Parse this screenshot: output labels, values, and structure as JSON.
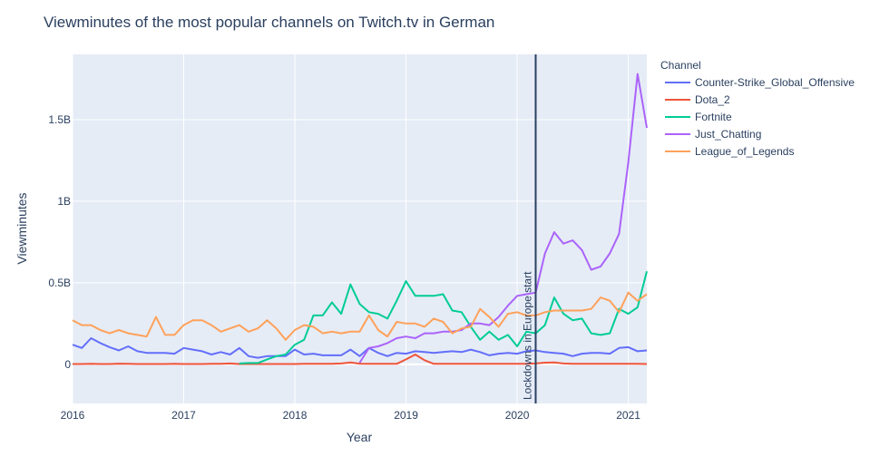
{
  "chart_data": {
    "type": "line",
    "title": "Viewminutes of the most popular channels on Twitch.tv in German",
    "xlabel": "Year",
    "ylabel": "Viewminutes",
    "legend_title": "Channel",
    "legend_position": "right",
    "grid": true,
    "x_ticks": [
      "2016",
      "2017",
      "2018",
      "2019",
      "2020",
      "2021"
    ],
    "y_ticks": [
      {
        "value": 0,
        "label": "0"
      },
      {
        "value": 500000000,
        "label": "0.5B"
      },
      {
        "value": 1000000000,
        "label": "1B"
      },
      {
        "value": 1500000000,
        "label": "1.5B"
      }
    ],
    "xlim": [
      "2016-01",
      "2021-03"
    ],
    "ylim": [
      -240000000,
      1900000000
    ],
    "annotation": {
      "x": "2020-03",
      "text": "Lockdowns in Europe start",
      "color": "#2a3f5f"
    },
    "x": [
      "2016-01",
      "2016-02",
      "2016-03",
      "2016-04",
      "2016-05",
      "2016-06",
      "2016-07",
      "2016-08",
      "2016-09",
      "2016-10",
      "2016-11",
      "2016-12",
      "2017-01",
      "2017-02",
      "2017-03",
      "2017-04",
      "2017-05",
      "2017-06",
      "2017-07",
      "2017-08",
      "2017-09",
      "2017-10",
      "2017-11",
      "2017-12",
      "2018-01",
      "2018-02",
      "2018-03",
      "2018-04",
      "2018-05",
      "2018-06",
      "2018-07",
      "2018-08",
      "2018-09",
      "2018-10",
      "2018-11",
      "2018-12",
      "2019-01",
      "2019-02",
      "2019-03",
      "2019-04",
      "2019-05",
      "2019-06",
      "2019-07",
      "2019-08",
      "2019-09",
      "2019-10",
      "2019-11",
      "2019-12",
      "2020-01",
      "2020-02",
      "2020-03",
      "2020-04",
      "2020-05",
      "2020-06",
      "2020-07",
      "2020-08",
      "2020-09",
      "2020-10",
      "2020-11",
      "2020-12",
      "2021-01",
      "2021-02",
      "2021-03"
    ],
    "series": [
      {
        "name": "Counter-Strike_Global_Offensive",
        "color": "#636efa",
        "values": [
          0.12,
          0.1,
          0.16,
          0.13,
          0.105,
          0.085,
          0.11,
          0.08,
          0.07,
          0.07,
          0.07,
          0.065,
          0.1,
          0.09,
          0.08,
          0.06,
          0.075,
          0.06,
          0.1,
          0.05,
          0.04,
          0.05,
          0.05,
          0.05,
          0.09,
          0.06,
          0.065,
          0.055,
          0.055,
          0.055,
          0.09,
          0.05,
          0.1,
          0.07,
          0.05,
          0.07,
          0.065,
          0.08,
          0.075,
          0.07,
          0.075,
          0.08,
          0.075,
          0.09,
          0.075,
          0.055,
          0.065,
          0.07,
          0.065,
          0.08,
          0.085,
          0.075,
          0.07,
          0.065,
          0.05,
          0.065,
          0.07,
          0.07,
          0.065,
          0.1,
          0.105,
          0.08,
          0.085
        ]
      },
      {
        "name": "Dota_2",
        "color": "#ef553b",
        "values": [
          0.002,
          0.002,
          0.003,
          0.002,
          0.002,
          0.004,
          0.003,
          0.002,
          0.002,
          0.002,
          0.002,
          0.003,
          0.002,
          0.002,
          0.002,
          0.003,
          0.003,
          0.005,
          0.002,
          0.002,
          0.002,
          0.002,
          0.002,
          0.002,
          0.002,
          0.003,
          0.003,
          0.003,
          0.003,
          0.005,
          0.012,
          0.004,
          0.003,
          0.003,
          0.003,
          0.003,
          0.03,
          0.06,
          0.025,
          0.003,
          0.003,
          0.003,
          0.003,
          0.003,
          0.003,
          0.003,
          0.003,
          0.003,
          0.003,
          0.003,
          0.005,
          0.01,
          0.012,
          0.005,
          0.003,
          0.003,
          0.003,
          0.003,
          0.003,
          0.003,
          0.003,
          0.003,
          0.002
        ]
      },
      {
        "name": "Fortnite",
        "color": "#00cc96",
        "values": [
          null,
          null,
          null,
          null,
          null,
          null,
          null,
          null,
          null,
          null,
          null,
          null,
          null,
          null,
          null,
          null,
          null,
          null,
          0.005,
          0.008,
          0.008,
          0.03,
          0.05,
          0.06,
          0.12,
          0.15,
          0.3,
          0.3,
          0.38,
          0.31,
          0.49,
          0.37,
          0.32,
          0.31,
          0.28,
          0.39,
          0.51,
          0.42,
          0.42,
          0.42,
          0.43,
          0.33,
          0.32,
          0.23,
          0.15,
          0.2,
          0.15,
          0.18,
          0.11,
          0.2,
          0.19,
          0.24,
          0.41,
          0.31,
          0.27,
          0.28,
          0.19,
          0.18,
          0.19,
          0.34,
          0.31,
          0.35,
          0.57
        ]
      },
      {
        "name": "Just_Chatting",
        "color": "#ab63fa",
        "values": [
          null,
          null,
          null,
          null,
          null,
          null,
          null,
          null,
          null,
          null,
          null,
          null,
          null,
          null,
          null,
          null,
          null,
          null,
          null,
          null,
          null,
          null,
          null,
          null,
          null,
          null,
          null,
          null,
          null,
          null,
          null,
          0.01,
          0.1,
          0.11,
          0.13,
          0.16,
          0.17,
          0.16,
          0.19,
          0.19,
          0.2,
          0.2,
          0.21,
          0.25,
          0.25,
          0.24,
          0.29,
          0.36,
          0.42,
          0.43,
          0.44,
          0.68,
          0.81,
          0.74,
          0.76,
          0.7,
          0.58,
          0.6,
          0.68,
          0.8,
          1.24,
          1.78,
          1.45
        ]
      },
      {
        "name": "League_of_Legends",
        "color": "#ffa15a",
        "values": [
          0.27,
          0.24,
          0.24,
          0.21,
          0.19,
          0.21,
          0.19,
          0.18,
          0.17,
          0.29,
          0.18,
          0.18,
          0.24,
          0.27,
          0.27,
          0.24,
          0.2,
          0.22,
          0.24,
          0.2,
          0.22,
          0.27,
          0.22,
          0.15,
          0.21,
          0.24,
          0.23,
          0.19,
          0.2,
          0.19,
          0.2,
          0.2,
          0.3,
          0.21,
          0.17,
          0.26,
          0.25,
          0.25,
          0.23,
          0.28,
          0.26,
          0.19,
          0.22,
          0.23,
          0.34,
          0.29,
          0.23,
          0.31,
          0.32,
          0.3,
          0.3,
          0.32,
          0.33,
          0.33,
          0.33,
          0.33,
          0.34,
          0.41,
          0.39,
          0.32,
          0.44,
          0.39,
          0.43
        ]
      }
    ],
    "value_unit_multiplier": 1000000000
  }
}
